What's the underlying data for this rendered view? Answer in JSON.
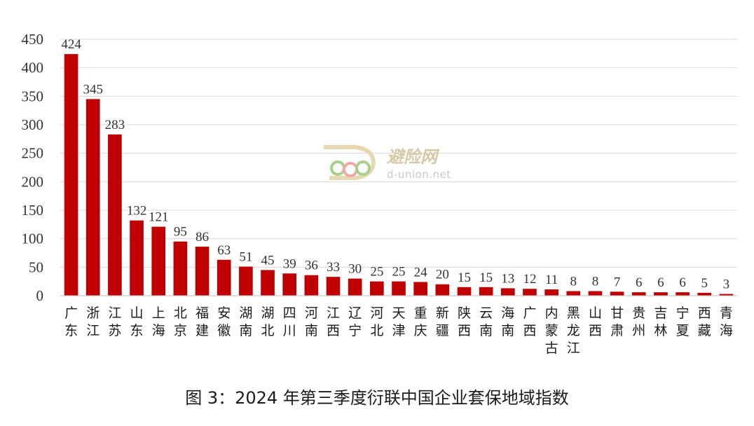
{
  "caption": "图 3：2024 年第三季度衍联中国企业套保地域指数",
  "watermark": {
    "cn": "避险网",
    "en": "d-union.net"
  },
  "colors": {
    "bar": "#c00000",
    "grid": "#d9d9d9",
    "axis": "#bfbfbf"
  },
  "chart_data": {
    "type": "bar",
    "categories": [
      "广东",
      "浙江",
      "江苏",
      "山东",
      "上海",
      "北京",
      "福建",
      "安徽",
      "湖南",
      "湖北",
      "四川",
      "河南",
      "江西",
      "辽宁",
      "河北",
      "天津",
      "重庆",
      "新疆",
      "陕西",
      "云南",
      "海南",
      "广西",
      "内蒙古",
      "黑龙江",
      "山西",
      "甘肃",
      "贵州",
      "吉林",
      "宁夏",
      "西藏",
      "青海"
    ],
    "values": [
      424,
      345,
      283,
      132,
      121,
      95,
      86,
      63,
      51,
      45,
      39,
      36,
      33,
      30,
      25,
      25,
      24,
      20,
      15,
      15,
      13,
      12,
      11,
      8,
      8,
      7,
      6,
      6,
      6,
      5,
      3
    ],
    "yticks": [
      0,
      50,
      100,
      150,
      200,
      250,
      300,
      350,
      400,
      450
    ],
    "ylim": [
      0,
      450
    ],
    "grid": true,
    "legend": "none",
    "data_labels": true
  }
}
